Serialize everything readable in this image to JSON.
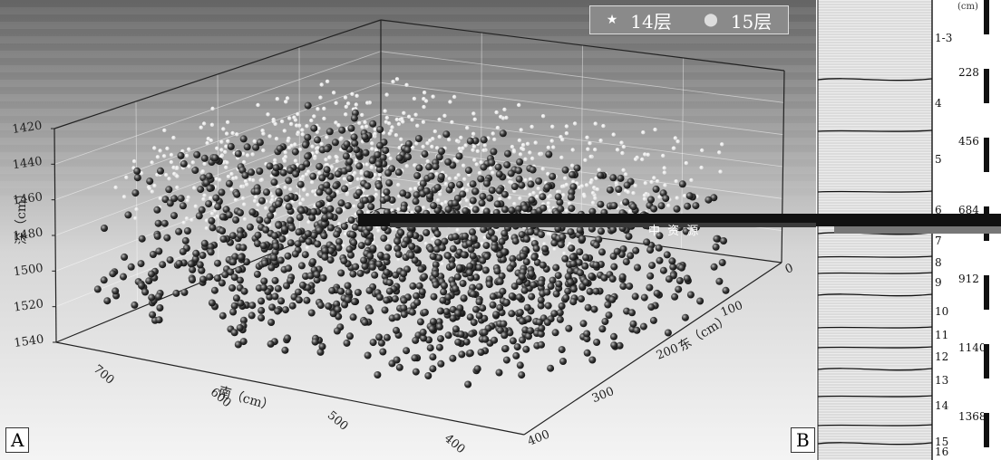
{
  "panel_a": {
    "label": "A",
    "legend": [
      {
        "symbol": "★",
        "label": "14层",
        "color": "#ffffff"
      },
      {
        "symbol": "⬤",
        "label": "15层",
        "color": "#2a2a2a"
      }
    ],
    "z_axis_label": "深（cm）",
    "x_axis_label": "南（cm）",
    "y_axis_label": "东（cm）",
    "glitch_text": "中 资 源"
  },
  "panel_b": {
    "label": "B",
    "depth_unit": "(cm)",
    "layers": [
      "1-3",
      "4",
      "5",
      "6",
      "7",
      "8",
      "9",
      "10",
      "11",
      "12",
      "13",
      "14",
      "15",
      "16"
    ],
    "depth_ticks": [
      "228",
      "456",
      "684",
      "912",
      "1140",
      "1368"
    ]
  },
  "chart_data": {
    "type": "scatter",
    "title": "",
    "projection": "3d",
    "x_axis": {
      "label": "南（cm）",
      "ticks": [
        700,
        600,
        500,
        400
      ],
      "range": [
        400,
        750
      ]
    },
    "y_axis": {
      "label": "东（cm）",
      "ticks": [
        0,
        100,
        200,
        300,
        400
      ],
      "range": [
        0,
        400
      ]
    },
    "z_axis": {
      "label": "深（cm）",
      "ticks": [
        1420,
        1440,
        1460,
        1480,
        1500,
        1520,
        1540
      ],
      "range": [
        1420,
        1540
      ]
    },
    "series": [
      {
        "name": "14层",
        "color": "#ffffff",
        "point_count_approx": 2000,
        "depth_range": [
          1430,
          1470
        ]
      },
      {
        "name": "15层",
        "color": "#2a2a2a",
        "point_count_approx": 2500,
        "depth_range": [
          1450,
          1530
        ]
      }
    ],
    "legend_position": "top-right",
    "grid": true
  }
}
